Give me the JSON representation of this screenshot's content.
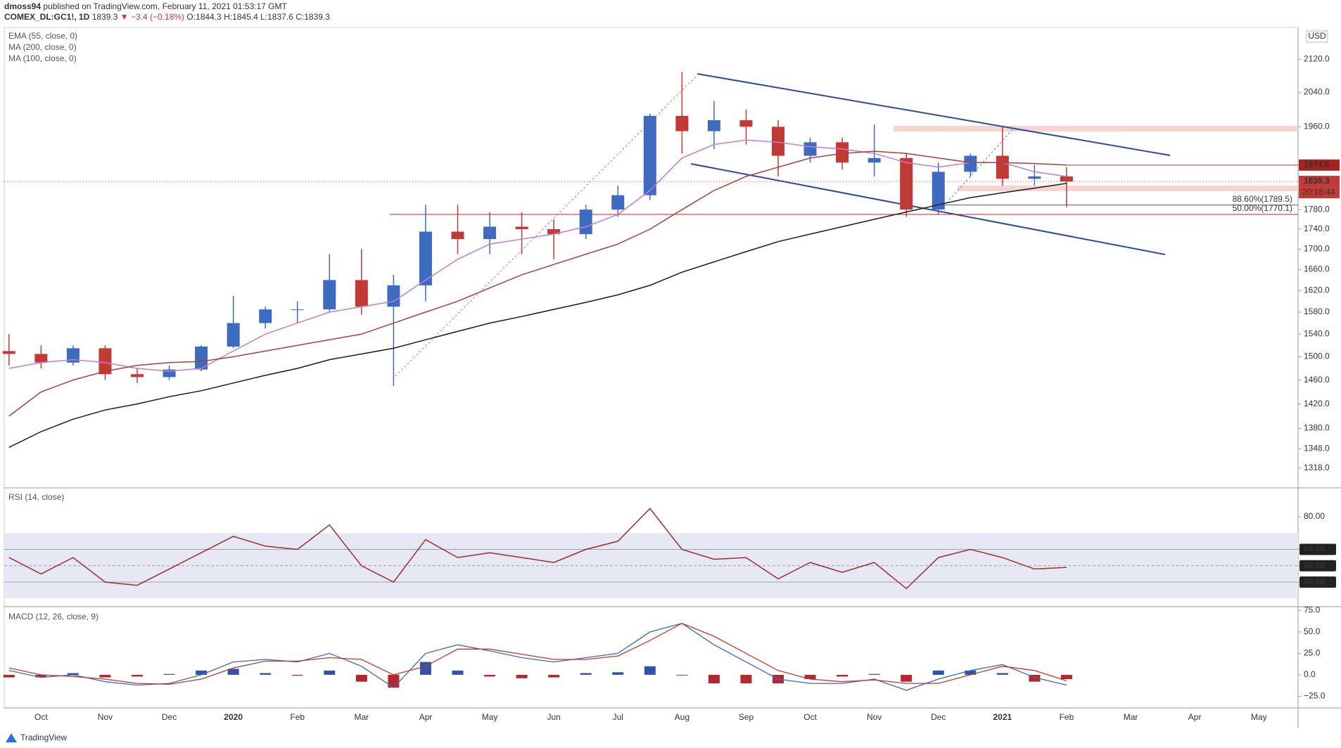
{
  "header": {
    "author": "dmoss94",
    "published": "published on TradingView.com, February 11, 2021 01:53:17 GMT",
    "symbol": "COMEX_DL:GC1!, 1D",
    "last": "1839.3",
    "change": "▼ −3.4 (−0.18%)",
    "open": "O:1844.3",
    "high": "H:1845.4",
    "low": "L:1837.6",
    "close": "C:1839.3"
  },
  "chart_data": [
    {
      "type": "candlestick",
      "categories": [
        null,
        "Oct",
        null,
        "Nov",
        null,
        "Dec",
        null,
        "2020",
        null,
        "Feb",
        null,
        "Mar",
        null,
        "Apr",
        null,
        "May",
        null,
        "Jun",
        null,
        "Jul",
        null,
        "Aug",
        null,
        "Sep",
        null,
        "Oct",
        null,
        "Nov",
        null,
        "Dec",
        null,
        "2021",
        null,
        "Feb",
        null,
        "Mar",
        null,
        "Apr",
        null,
        "May",
        null
      ],
      "open": [
        1510,
        1505,
        1490,
        1515,
        1470,
        1465,
        1478,
        1518,
        1560,
        1585,
        1585,
        1640,
        1590,
        1630,
        1735,
        1720,
        1745,
        1740,
        1730,
        1780,
        1810,
        1985,
        1950,
        1975,
        1960,
        1895,
        1925,
        1880,
        1890,
        1780,
        1860,
        1895,
        1845,
        1850,
        null,
        null,
        null,
        null,
        null,
        null,
        null
      ],
      "high": [
        1540,
        1520,
        1520,
        1520,
        1480,
        1485,
        1520,
        1610,
        1590,
        1600,
        1690,
        1700,
        1650,
        1790,
        1790,
        1775,
        1775,
        1760,
        1790,
        1830,
        1990,
        2089,
        2020,
        2000,
        1975,
        1935,
        1935,
        1965,
        1900,
        1880,
        1900,
        1960,
        1875,
        1870,
        null,
        null,
        null,
        null,
        null,
        null,
        null
      ],
      "low": [
        1485,
        1480,
        1485,
        1460,
        1455,
        1460,
        1475,
        1515,
        1550,
        1560,
        1580,
        1575,
        1450,
        1600,
        1690,
        1690,
        1690,
        1680,
        1720,
        1765,
        1800,
        1900,
        1910,
        1920,
        1850,
        1880,
        1865,
        1850,
        1765,
        1770,
        1850,
        1830,
        1830,
        1785,
        null,
        null,
        null,
        null,
        null,
        null,
        null
      ],
      "close": [
        1505,
        1490,
        1515,
        1470,
        1465,
        1478,
        1518,
        1560,
        1585,
        1585,
        1640,
        1590,
        1630,
        1735,
        1720,
        1745,
        1740,
        1730,
        1780,
        1810,
        1985,
        1950,
        1975,
        1960,
        1895,
        1925,
        1880,
        1890,
        1780,
        1860,
        1895,
        1845,
        1850,
        1839.3,
        null,
        null,
        null,
        null,
        null,
        null,
        null
      ],
      "up_color": "#3d6bc0",
      "down_color": "#c23a36",
      "series": [
        {
          "name": "EMA (55, close, 0)",
          "color": "#c27bd6",
          "values": [
            1480,
            1490,
            1495,
            1490,
            1480,
            1475,
            1480,
            1510,
            1540,
            1560,
            1580,
            1590,
            1600,
            1640,
            1680,
            1710,
            1720,
            1730,
            1745,
            1770,
            1820,
            1890,
            1920,
            1930,
            1925,
            1915,
            1910,
            1900,
            1880,
            1870,
            1880,
            1880,
            1860,
            1850,
            null,
            null,
            null,
            null,
            null,
            null,
            null
          ]
        },
        {
          "name": "MA (200, close, 0)",
          "color": "#1a1a1a",
          "values": [
            1350,
            1375,
            1395,
            1410,
            1420,
            1432,
            1442,
            1455,
            1468,
            1480,
            1495,
            1505,
            1515,
            1530,
            1545,
            1560,
            1572,
            1585,
            1598,
            1612,
            1630,
            1655,
            1675,
            1695,
            1715,
            1730,
            1745,
            1760,
            1775,
            1790,
            1805,
            1815,
            1825,
            1835,
            null,
            null,
            null,
            null,
            null,
            null,
            null
          ]
        },
        {
          "name": "MA (100, close, 0)",
          "color": "#a8403a",
          "values": [
            1400,
            1440,
            1460,
            1475,
            1485,
            1490,
            1492,
            1500,
            1510,
            1520,
            1530,
            1540,
            1560,
            1580,
            1600,
            1625,
            1650,
            1670,
            1690,
            1710,
            1740,
            1780,
            1820,
            1850,
            1870,
            1890,
            1900,
            1905,
            1900,
            1890,
            1880,
            1880,
            1878,
            1874.6,
            null,
            null,
            null,
            null,
            null,
            null,
            null
          ]
        }
      ],
      "ylim": [
        1289,
        2200
      ],
      "log_scale": true,
      "currency": "USD",
      "yticks": [
        {
          "value": 2120,
          "label": "2120.0"
        },
        {
          "value": 2040,
          "label": "2040.0"
        },
        {
          "value": 1960,
          "label": "1960.0"
        },
        {
          "value": 1780,
          "label": "1780.0"
        },
        {
          "value": 1740,
          "label": "1740.0"
        },
        {
          "value": 1700,
          "label": "1700.0"
        },
        {
          "value": 1660,
          "label": "1660.0"
        },
        {
          "value": 1620,
          "label": "1620.0"
        },
        {
          "value": 1580,
          "label": "1580.0"
        },
        {
          "value": 1540,
          "label": "1540.0"
        },
        {
          "value": 1500,
          "label": "1500.0"
        },
        {
          "value": 1460,
          "label": "1460.0"
        },
        {
          "value": 1420,
          "label": "1420.0"
        },
        {
          "value": 1380,
          "label": "1380.0"
        },
        {
          "value": 1348,
          "label": "1348.0"
        },
        {
          "value": 1318,
          "label": "1318.0"
        }
      ],
      "price_labels": [
        1874.6,
        1839.3
      ],
      "countdown": "20:16:44",
      "fib_levels": [
        {
          "value": 1789.5,
          "label": "88.60%(1789.5)",
          "color": "#3a5bb5"
        },
        {
          "value": 1770.1,
          "label": "50.00%(1770.1)",
          "color": "#b2282e"
        }
      ]
    },
    {
      "type": "line",
      "title": "RSI (14, close)",
      "color": "#9c2d2d",
      "values": [
        55,
        45,
        55,
        40,
        38,
        48,
        58,
        68,
        62,
        60,
        75,
        50,
        40,
        66,
        55,
        58,
        55,
        52,
        60,
        65,
        85,
        60,
        54,
        55,
        42,
        52,
        46,
        52,
        36,
        55,
        60,
        55,
        48,
        49,
        null,
        null,
        null,
        null,
        null,
        null,
        null
      ],
      "ylim": [
        25.8,
        96.8
      ],
      "yticks": [
        {
          "value": 80,
          "label": "80.00"
        }
      ],
      "levels": [
        {
          "value": 60,
          "label": "60.00"
        },
        {
          "value": 50,
          "label": "50.00"
        },
        {
          "value": 40,
          "label": "40.00"
        }
      ],
      "band": [
        30,
        70
      ]
    },
    {
      "type": "macd",
      "title": "MACD (12, 26, close, 9)",
      "macd": {
        "color": "#3a66c4",
        "values": [
          5,
          -3,
          0,
          -8,
          -12,
          -10,
          0,
          15,
          18,
          15,
          25,
          10,
          -15,
          25,
          35,
          28,
          20,
          15,
          20,
          25,
          50,
          60,
          35,
          15,
          -5,
          -10,
          -10,
          -5,
          -18,
          -5,
          5,
          12,
          -3,
          -12,
          null,
          null,
          null,
          null,
          null,
          null,
          null
        ]
      },
      "signal": {
        "color": "#c0392b",
        "values": [
          8,
          0,
          -2,
          -5,
          -10,
          -11,
          -5,
          8,
          16,
          16,
          20,
          18,
          0,
          10,
          30,
          30,
          24,
          18,
          18,
          22,
          40,
          60,
          45,
          25,
          5,
          -5,
          -8,
          -6,
          -10,
          -10,
          0,
          10,
          5,
          -7,
          null,
          null,
          null,
          null,
          null,
          null,
          null
        ]
      },
      "histogram": {
        "positive_color": "#2f54a8",
        "negative_color": "#b2282e",
        "values": [
          -3,
          -3,
          2,
          -3,
          -2,
          1,
          5,
          7,
          2,
          -1,
          5,
          -8,
          -15,
          15,
          5,
          -2,
          -4,
          -3,
          2,
          3,
          10,
          0,
          -10,
          -10,
          -10,
          -5,
          -2,
          1,
          -8,
          5,
          5,
          2,
          -8,
          -5,
          null,
          null,
          null,
          null,
          null,
          null,
          null
        ]
      },
      "ylim": [
        -37.8,
        77
      ],
      "yticks": [
        {
          "value": 75,
          "label": "75.0"
        },
        {
          "value": 50,
          "label": "50.0"
        },
        {
          "value": 25,
          "label": "25.0"
        },
        {
          "value": 0,
          "label": "0.0"
        },
        {
          "value": -25,
          "label": "−25.0"
        }
      ]
    }
  ],
  "footer": {
    "brand": "TradingView"
  }
}
